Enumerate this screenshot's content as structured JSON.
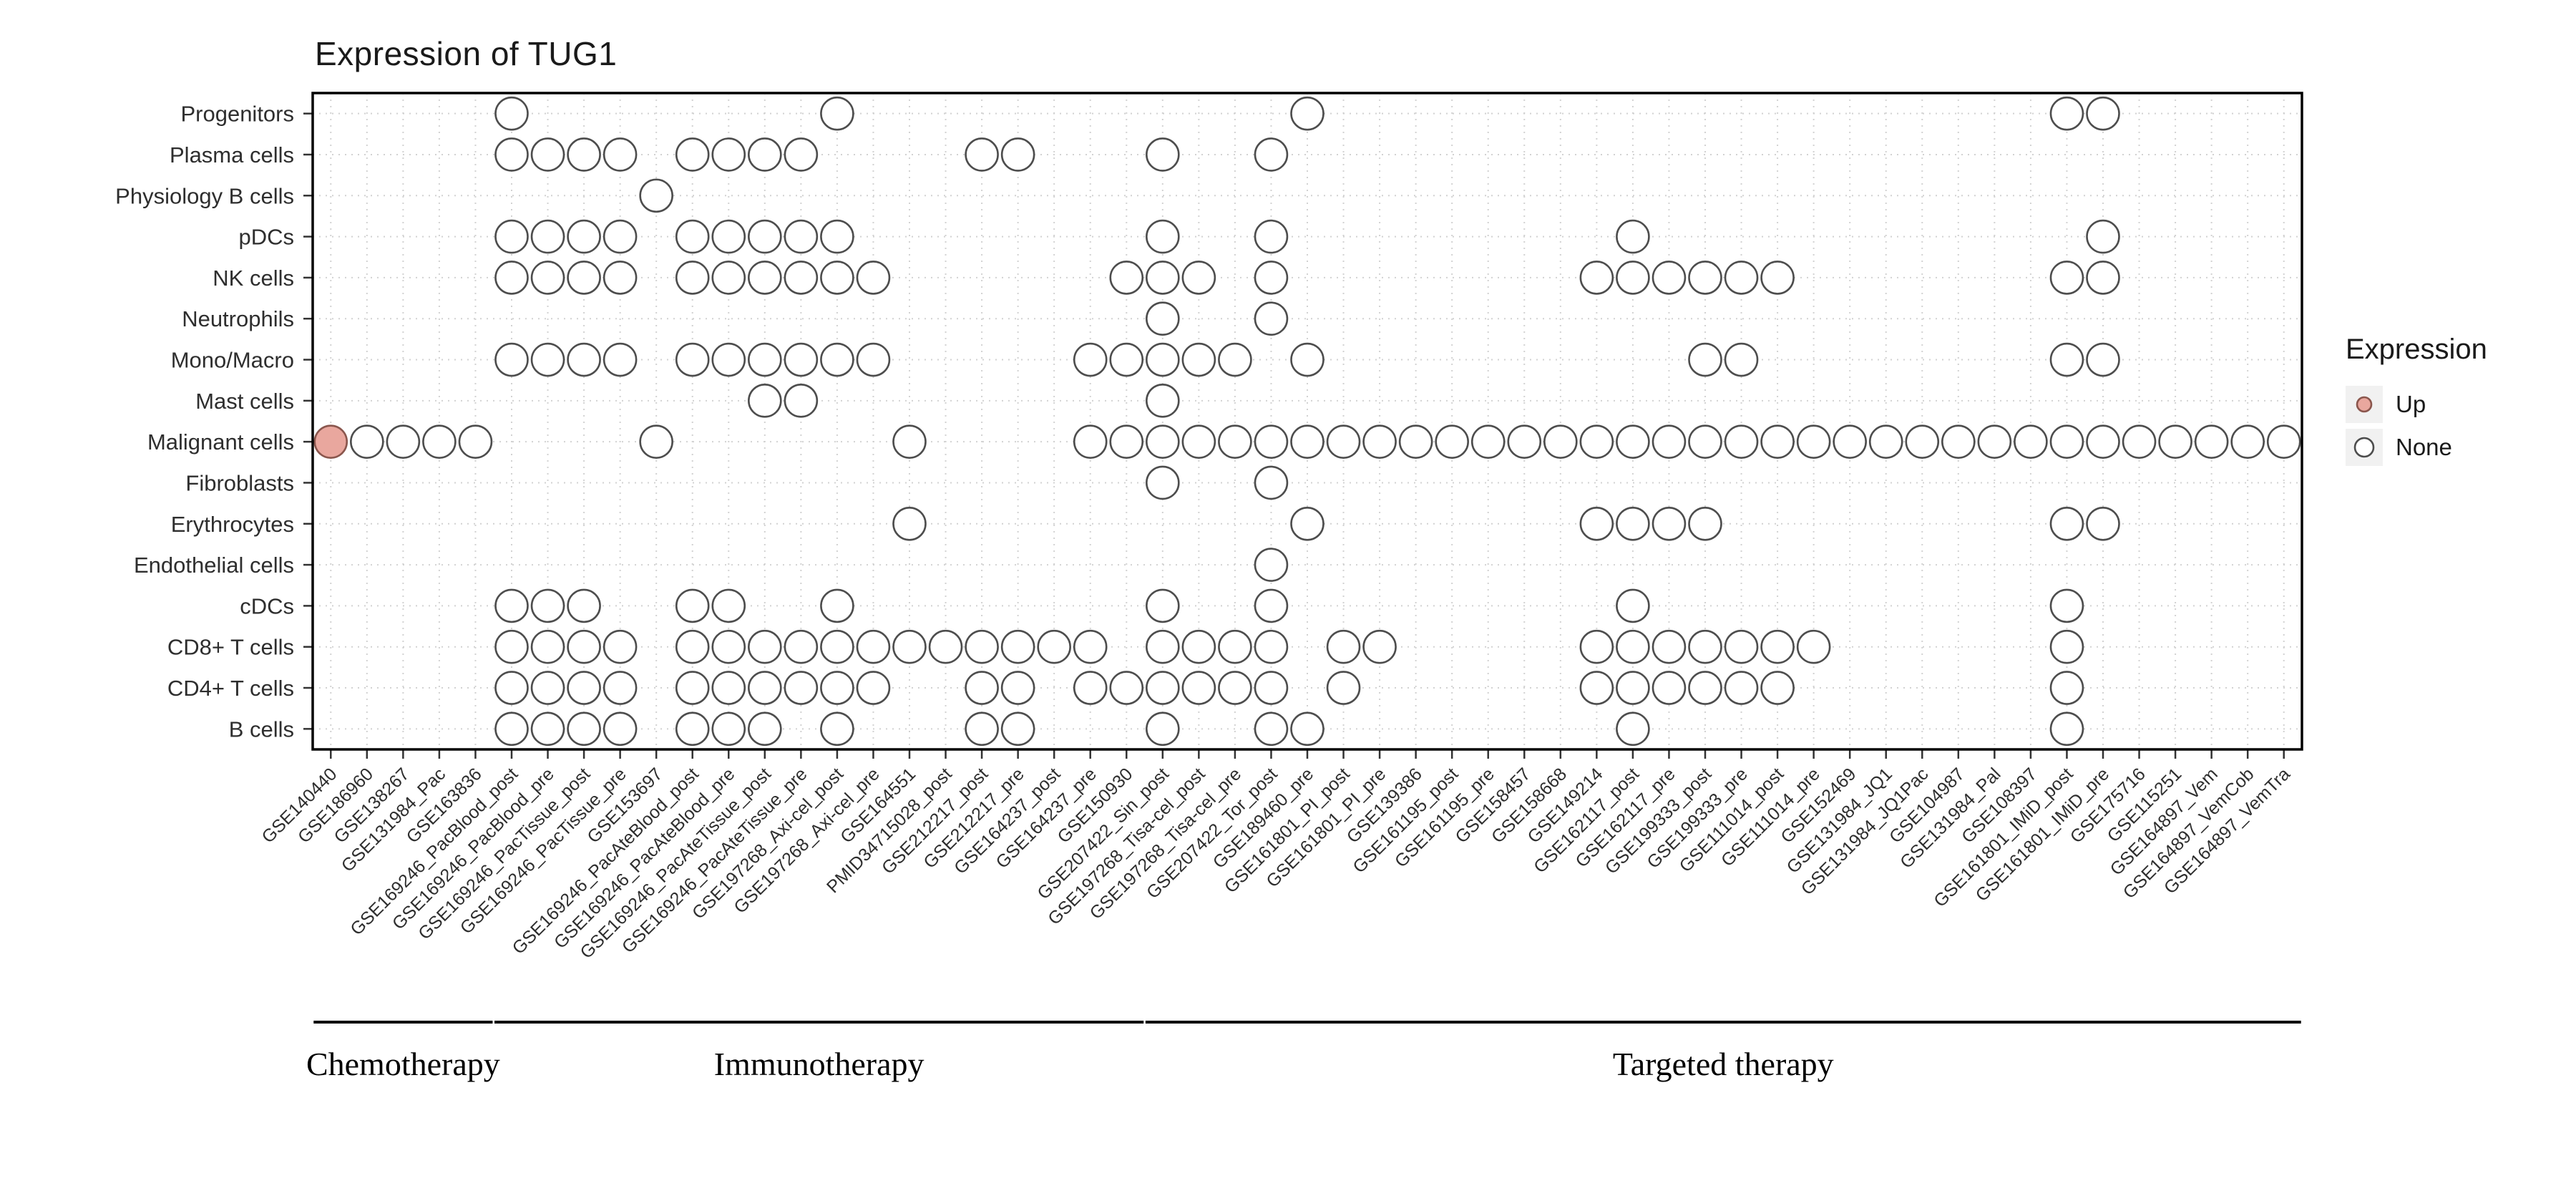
{
  "chart_data": {
    "type": "dot-matrix",
    "title": "Expression of TUG1",
    "rows": [
      "Progenitors",
      "Plasma cells",
      "Physiology B cells",
      "pDCs",
      "NK cells",
      "Neutrophils",
      "Mono/Macro",
      "Mast cells",
      "Malignant cells",
      "Fibroblasts",
      "Erythrocytes",
      "Endothelial cells",
      "cDCs",
      "CD8+ T cells",
      "CD4+ T cells",
      "B cells"
    ],
    "columns": [
      "GSE140440",
      "GSE186960",
      "GSE138267",
      "GSE131984_Pac",
      "GSE163836",
      "GSE169246_PacBlood_post",
      "GSE169246_PacBlood_pre",
      "GSE169246_PacTissue_post",
      "GSE169246_PacTissue_pre",
      "GSE153697",
      "GSE169246_PacAteBlood_post",
      "GSE169246_PacAteBlood_pre",
      "GSE169246_PacAteTissue_post",
      "GSE169246_PacAteTissue_pre",
      "GSE197268_Axi-cel_post",
      "GSE197268_Axi-cel_pre",
      "GSE164551",
      "PMID34715028_post",
      "GSE212217_post",
      "GSE212217_pre",
      "GSE164237_post",
      "GSE164237_pre",
      "GSE150930",
      "GSE207422_Sin_post",
      "GSE197268_Tisa-cel_post",
      "GSE197268_Tisa-cel_pre",
      "GSE207422_Tor_post",
      "GSE189460_pre",
      "GSE161801_PI_post",
      "GSE161801_PI_pre",
      "GSE139386",
      "GSE161195_post",
      "GSE161195_pre",
      "GSE158457",
      "GSE158668",
      "GSE149214",
      "GSE162117_post",
      "GSE162117_pre",
      "GSE199333_post",
      "GSE199333_pre",
      "GSE111014_post",
      "GSE111014_pre",
      "GSE152469",
      "GSE131984_JQ1",
      "GSE131984_JQ1Pac",
      "GSE104987",
      "GSE131984_Pal",
      "GSE108397",
      "GSE161801_IMiD_post",
      "GSE161801_IMiD_pre",
      "GSE175716",
      "GSE115251",
      "GSE164897_Vem",
      "GSE164897_VemCob",
      "GSE164897_VemTra"
    ],
    "groups": [
      {
        "label": "Chemotherapy",
        "start": 0,
        "end": 4
      },
      {
        "label": "Immunotherapy",
        "start": 5,
        "end": 22
      },
      {
        "label": "Targeted therapy",
        "start": 23,
        "end": 54
      }
    ],
    "legend": {
      "title": "Expression",
      "items": [
        {
          "label": "Up",
          "fill": "#e9a79e",
          "stroke": "#8a564d",
          "radius": 10
        },
        {
          "label": "None",
          "fill": "#ffffff",
          "stroke": "#4d4d4d",
          "radius": 13
        }
      ]
    },
    "dots": {
      "Progenitors": [
        5,
        14,
        27,
        48,
        49
      ],
      "Plasma cells": [
        5,
        6,
        7,
        8,
        10,
        11,
        12,
        13,
        18,
        19,
        23,
        26
      ],
      "Physiology B cells": [
        9
      ],
      "pDCs": [
        5,
        6,
        7,
        8,
        10,
        11,
        12,
        13,
        14,
        23,
        26,
        36,
        49
      ],
      "NK cells": [
        5,
        6,
        7,
        8,
        10,
        11,
        12,
        13,
        14,
        15,
        22,
        23,
        24,
        26,
        35,
        36,
        37,
        38,
        39,
        40,
        48,
        49
      ],
      "Neutrophils": [
        23,
        26
      ],
      "Mono/Macro": [
        5,
        6,
        7,
        8,
        10,
        11,
        12,
        13,
        14,
        15,
        21,
        22,
        23,
        24,
        25,
        27,
        38,
        39,
        48,
        49
      ],
      "Mast cells": [
        12,
        13,
        23
      ],
      "Malignant cells": [
        0,
        1,
        2,
        3,
        4,
        9,
        16,
        21,
        22,
        23,
        24,
        25,
        26,
        27,
        28,
        29,
        30,
        31,
        32,
        33,
        34,
        35,
        36,
        37,
        38,
        39,
        40,
        41,
        42,
        43,
        44,
        45,
        46,
        47,
        48,
        49,
        50,
        51,
        52,
        53,
        54
      ],
      "Fibroblasts": [
        23,
        26
      ],
      "Erythrocytes": [
        16,
        27,
        35,
        36,
        37,
        38,
        48,
        49
      ],
      "Endothelial cells": [
        26
      ],
      "cDCs": [
        5,
        6,
        7,
        10,
        11,
        14,
        23,
        26,
        36,
        48
      ],
      "CD8+ T cells": [
        5,
        6,
        7,
        8,
        10,
        11,
        12,
        13,
        14,
        15,
        16,
        17,
        18,
        19,
        20,
        21,
        23,
        24,
        25,
        26,
        28,
        29,
        35,
        36,
        37,
        38,
        39,
        40,
        41,
        48
      ],
      "CD4+ T cells": [
        5,
        6,
        7,
        8,
        10,
        11,
        12,
        13,
        14,
        15,
        18,
        19,
        21,
        22,
        23,
        24,
        25,
        26,
        28,
        35,
        36,
        37,
        38,
        39,
        40,
        48
      ],
      "B cells": [
        5,
        6,
        7,
        8,
        10,
        11,
        12,
        14,
        18,
        19,
        23,
        26,
        27,
        36,
        48
      ]
    },
    "up_dots": [
      {
        "row": "Malignant cells",
        "col": 0
      }
    ]
  }
}
